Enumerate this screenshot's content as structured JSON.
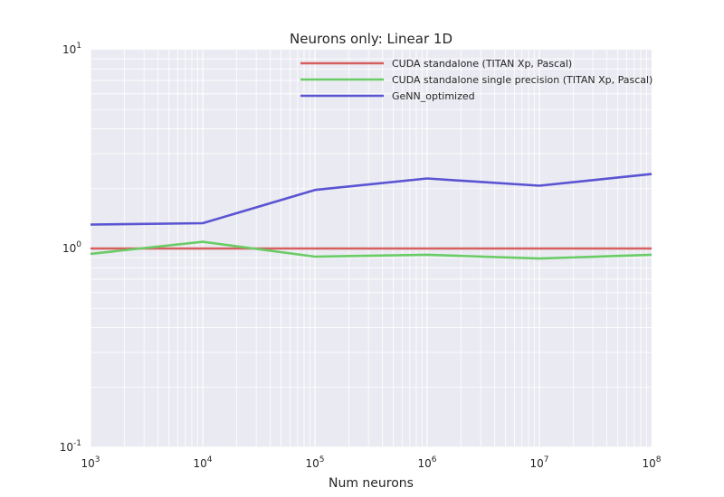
{
  "chart_data": {
    "type": "line",
    "title": "Neurons only: Linear 1D",
    "xlabel": "Num neurons",
    "ylabel": "",
    "xscale": "log",
    "yscale": "log",
    "xlim": [
      1000,
      100000000
    ],
    "ylim": [
      0.1,
      10
    ],
    "x_ticks": [
      {
        "base": "10",
        "exp": "3"
      },
      {
        "base": "10",
        "exp": "4"
      },
      {
        "base": "10",
        "exp": "5"
      },
      {
        "base": "10",
        "exp": "6"
      },
      {
        "base": "10",
        "exp": "7"
      },
      {
        "base": "10",
        "exp": "8"
      }
    ],
    "y_ticks": [
      {
        "base": "10",
        "exp": "-1"
      },
      {
        "base": "10",
        "exp": "0"
      },
      {
        "base": "10",
        "exp": "1"
      }
    ],
    "grid": true,
    "legend_position": "top-right",
    "x": [
      1000,
      10000,
      100000,
      1000000,
      10000000,
      100000000
    ],
    "series": [
      {
        "name": "CUDA standalone (TITAN Xp, Pascal)",
        "color": "#d65f5f",
        "values": [
          1.0,
          1.0,
          1.0,
          1.0,
          1.0,
          1.0
        ]
      },
      {
        "name": "CUDA standalone single precision (TITAN Xp, Pascal)",
        "color": "#6acc65",
        "values": [
          0.94,
          1.08,
          0.91,
          0.93,
          0.89,
          0.93
        ]
      },
      {
        "name": "GeNN_optimized",
        "color": "#5a54d2",
        "values": [
          1.32,
          1.34,
          1.97,
          2.25,
          2.07,
          2.37
        ]
      }
    ]
  }
}
